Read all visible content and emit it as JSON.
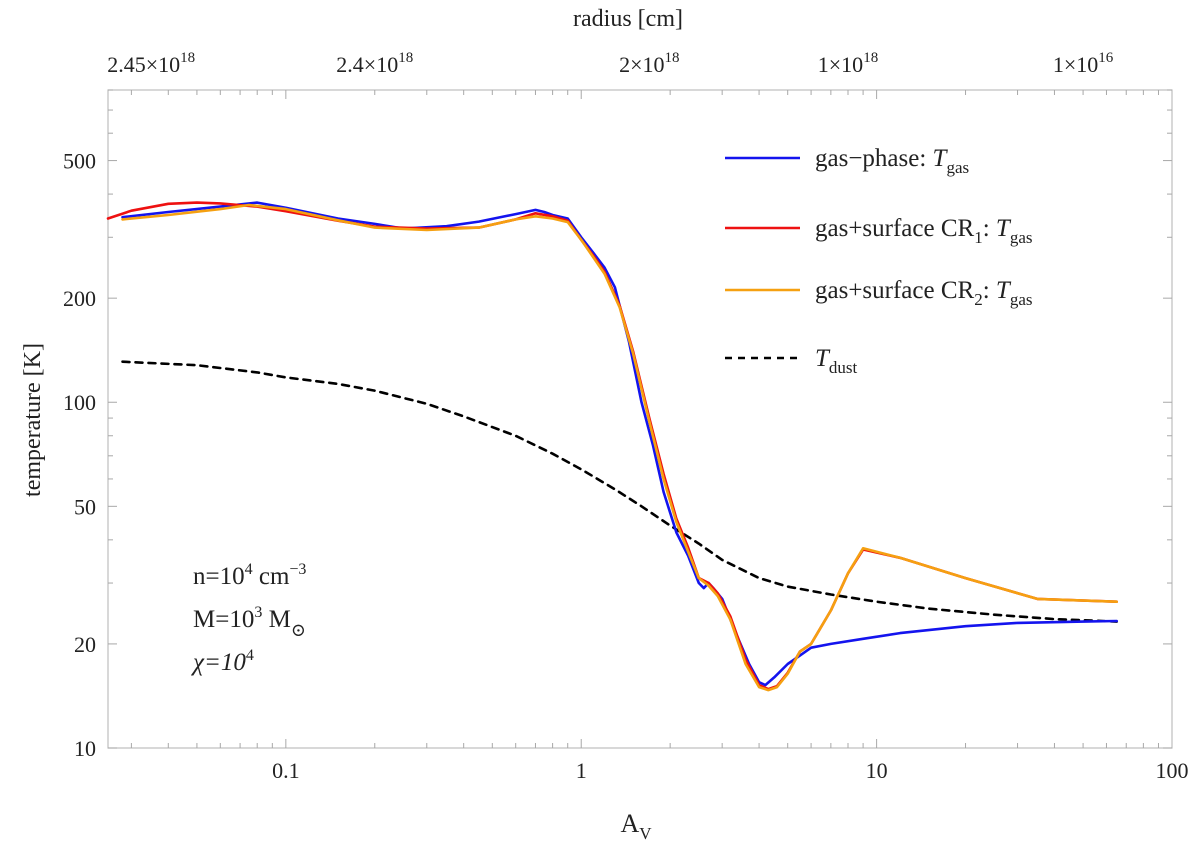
{
  "chart_data": {
    "type": "line",
    "title": "",
    "xlabel": "A",
    "xlabel_sub": "V",
    "ylabel": "temperature [K]",
    "top_axis_label": "radius [cm]",
    "xscale": "log",
    "yscale": "log",
    "xlim": [
      0.025,
      100
    ],
    "ylim": [
      10,
      800
    ],
    "x_ticks": [
      "0.1",
      "1",
      "10",
      "100"
    ],
    "y_ticks": [
      "10",
      "20",
      "50",
      "100",
      "200",
      "500"
    ],
    "top_ticks": [
      {
        "at_av": 0.035,
        "mant": "2.45×10",
        "exp": "18"
      },
      {
        "at_av": 0.2,
        "mant": "2.4×10",
        "exp": "18"
      },
      {
        "at_av": 1.7,
        "mant": "2×10",
        "exp": "18"
      },
      {
        "at_av": 8.0,
        "mant": "1×10",
        "exp": "18"
      },
      {
        "at_av": 50,
        "mant": "1×10",
        "exp": "16"
      }
    ],
    "legend_position": "top-right",
    "series": [
      {
        "name": "gas−phase: T_gas",
        "legend_main": "gas−phase: ",
        "legend_sub_prefix": "",
        "legend_sub": "",
        "legend_after": "",
        "legend_T": "T",
        "legend_Tsub": "gas",
        "color": "#1414ee",
        "dash": "",
        "x": [
          0.028,
          0.04,
          0.06,
          0.08,
          0.1,
          0.15,
          0.2,
          0.25,
          0.35,
          0.45,
          0.6,
          0.7,
          0.75,
          0.8,
          0.9,
          1.0,
          1.1,
          1.2,
          1.3,
          1.45,
          1.6,
          1.75,
          1.9,
          2.1,
          2.3,
          2.5,
          2.6,
          2.7,
          2.8,
          3.0,
          3.3,
          3.7,
          4.0,
          4.2,
          4.5,
          5.0,
          5.5,
          6.0,
          7.0,
          9.0,
          12,
          20,
          30,
          50,
          65
        ],
        "values": [
          343,
          355,
          368,
          378,
          365,
          340,
          328,
          318,
          323,
          333,
          350,
          360,
          355,
          348,
          340,
          300,
          270,
          245,
          215,
          150,
          100,
          75,
          55,
          42,
          36,
          30,
          29,
          30,
          29,
          27,
          22,
          17.5,
          15.5,
          15.2,
          16,
          17.5,
          18.5,
          19.5,
          20,
          20.7,
          21.5,
          22.5,
          23,
          23.2,
          23.3
        ]
      },
      {
        "name": "gas+surface CR1: T_gas",
        "legend_main": "gas+surface CR",
        "legend_sub_prefix": "",
        "legend_sub": "1",
        "legend_after": ": ",
        "legend_T": "T",
        "legend_Tsub": "gas",
        "color": "#ee1111",
        "dash": "",
        "x": [
          0.025,
          0.03,
          0.04,
          0.05,
          0.06,
          0.08,
          0.1,
          0.15,
          0.2,
          0.3,
          0.45,
          0.6,
          0.7,
          0.8,
          0.9,
          1.0,
          1.1,
          1.2,
          1.35,
          1.5,
          1.7,
          1.9,
          2.1,
          2.3,
          2.5,
          2.7,
          2.9,
          3.2,
          3.6,
          4.0,
          4.3,
          4.6,
          5.0,
          5.5,
          6.0,
          7.0,
          8.0,
          9.0,
          12,
          20,
          35,
          65
        ],
        "values": [
          340,
          358,
          375,
          378,
          376,
          368,
          357,
          335,
          322,
          318,
          320,
          338,
          352,
          345,
          335,
          295,
          265,
          238,
          190,
          140,
          90,
          62,
          46,
          38,
          31,
          30,
          28,
          24,
          18,
          15.2,
          14.8,
          15.1,
          16.5,
          19,
          20,
          25,
          32,
          37.5,
          35.5,
          31,
          27,
          26.5
        ]
      },
      {
        "name": "gas+surface CR2: T_gas",
        "legend_main": "gas+surface CR",
        "legend_sub_prefix": "",
        "legend_sub": "2",
        "legend_after": ": ",
        "legend_T": "T",
        "legend_Tsub": "gas",
        "color": "#f5a011",
        "dash": "",
        "x": [
          0.028,
          0.04,
          0.06,
          0.075,
          0.1,
          0.15,
          0.2,
          0.3,
          0.45,
          0.6,
          0.7,
          0.8,
          0.9,
          1.0,
          1.1,
          1.2,
          1.35,
          1.5,
          1.7,
          1.9,
          2.1,
          2.3,
          2.5,
          2.7,
          2.9,
          3.2,
          3.6,
          4.0,
          4.3,
          4.6,
          5.0,
          5.5,
          6.0,
          7.0,
          8.0,
          9.0,
          12,
          20,
          35,
          65
        ],
        "values": [
          338,
          348,
          362,
          372,
          362,
          336,
          320,
          315,
          320,
          338,
          345,
          340,
          332,
          295,
          262,
          235,
          188,
          138,
          88,
          60,
          45,
          37,
          31,
          29.5,
          27.5,
          23.5,
          17.5,
          15,
          14.7,
          15,
          16.4,
          19,
          20,
          25,
          32,
          37.8,
          35.5,
          31,
          27,
          26.5
        ]
      },
      {
        "name": "T_dust",
        "legend_main": "",
        "legend_sub_prefix": "",
        "legend_sub": "",
        "legend_after": "",
        "legend_T": "T",
        "legend_Tsub": "dust",
        "color": "#000000",
        "dash": "7,6",
        "x": [
          0.028,
          0.05,
          0.08,
          0.1,
          0.15,
          0.2,
          0.3,
          0.4,
          0.6,
          0.8,
          1.0,
          1.3,
          1.6,
          2.0,
          2.5,
          3.0,
          4.0,
          5.0,
          7.0,
          10,
          15,
          25,
          40,
          65
        ],
        "values": [
          131,
          128,
          122,
          118,
          113,
          108,
          99,
          91,
          80,
          71,
          64,
          56,
          50,
          44,
          39,
          35,
          31,
          29.3,
          27.8,
          26.5,
          25.3,
          24.3,
          23.6,
          23.2
        ]
      }
    ],
    "annotations": {
      "density": {
        "base": "n=10",
        "exp": "4",
        "unit": " cm",
        "unit_exp": "−3"
      },
      "mass": {
        "base": "M=10",
        "exp": "3",
        "unit": " M",
        "unit_sub": "⊙"
      },
      "field": {
        "base": "χ=10",
        "exp": "4"
      }
    }
  }
}
